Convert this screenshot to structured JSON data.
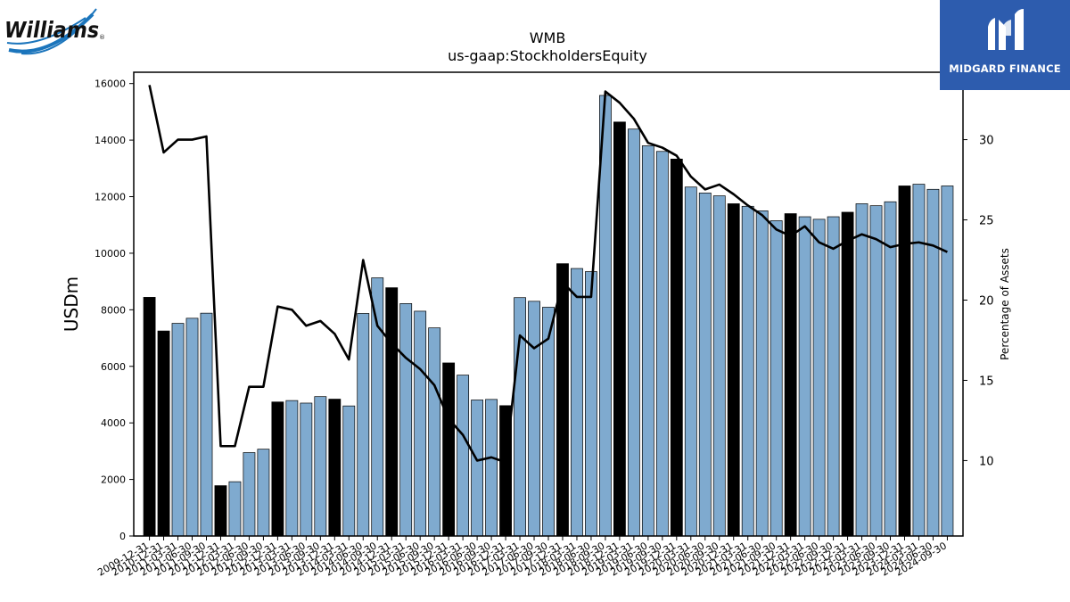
{
  "logos": {
    "left": {
      "text": "Williams",
      "mark": "®"
    },
    "right": {
      "text": "MIDGARD FINANCE"
    }
  },
  "chart_data": {
    "type": "bar",
    "title": "WMB",
    "subtitle": "us-gaap:StockholdersEquity",
    "ylabel": "USDm",
    "y2label": "Percentage of Assets",
    "ylim": [
      0,
      16400
    ],
    "y2lim": [
      5.3,
      34.2
    ],
    "yticks": [
      0,
      2000,
      4000,
      6000,
      8000,
      10000,
      12000,
      14000,
      16000
    ],
    "y2ticks": [
      10,
      15,
      20,
      25,
      30
    ],
    "categories": [
      "2009-12-31",
      "2010-12-31",
      "2011-03-31",
      "2011-06-30",
      "2011-09-30",
      "2011-12-31",
      "2012-03-31",
      "2012-06-30",
      "2012-09-30",
      "2012-12-31",
      "2013-03-31",
      "2013-06-30",
      "2013-09-30",
      "2013-12-31",
      "2014-03-31",
      "2014-06-30",
      "2014-09-30",
      "2014-12-31",
      "2015-03-31",
      "2015-06-30",
      "2015-09-30",
      "2015-12-31",
      "2016-03-31",
      "2016-06-30",
      "2016-09-30",
      "2016-12-31",
      "2017-03-31",
      "2017-06-30",
      "2017-09-30",
      "2017-12-31",
      "2018-03-31",
      "2018-06-30",
      "2018-09-30",
      "2018-12-31",
      "2019-03-31",
      "2019-06-30",
      "2019-09-30",
      "2019-12-31",
      "2020-03-31",
      "2020-06-30",
      "2020-09-30",
      "2020-12-31",
      "2021-03-31",
      "2021-06-30",
      "2021-09-30",
      "2021-12-31",
      "2022-03-31",
      "2022-06-30",
      "2022-09-30",
      "2022-12-31",
      "2023-03-31",
      "2023-06-30",
      "2023-09-30",
      "2023-12-31",
      "2024-03-31",
      "2024-06-30",
      "2024-09-30"
    ],
    "visible_tick_labels": [
      "2009-12-31",
      "2010-12-31",
      "2011-03-31",
      "2011-06-30",
      "2011-09-30",
      "2011-12-31",
      "2012-03-31",
      "2012-06-30",
      "2012-09-30",
      "2012-12-31",
      "2013-03-31",
      "2013-06-30",
      "2013-09-30",
      "2013-12-31",
      "2014-03-31",
      "2014-06-30",
      "2014-09-30",
      "2014-12-31",
      "2015-03-31",
      "2015-06-30",
      "2015-09-30",
      "2015-12-31",
      "2016-03-31",
      "2016-06-30",
      "2016-09-30",
      "2016-12-31",
      "2017-03-31",
      "2017-06-30",
      "2017-09-30",
      "2017-12-31",
      "2018-03-31",
      "2018-06-30",
      "2018-09-30",
      "2018-12-31",
      "2019-03-31",
      "2019-06-30",
      "2019-09-30",
      "2019-12-31",
      "2020-03-31",
      "2020-06-30",
      "2020-09-30",
      "2020-12-31",
      "2021-03-31",
      "2021-06-30",
      "2021-09-30",
      "2021-12-31",
      "2022-03-31",
      "2022-06-30",
      "2022-09-30",
      "2022-12-31",
      "2023-03-31",
      "2023-06-30",
      "2023-09-30",
      "2023-12-31",
      "2024-03-31",
      "2024-06-30",
      "2024-09-30"
    ],
    "bar_values": [
      8440,
      7250,
      7520,
      7700,
      7880,
      1780,
      1920,
      2950,
      3070,
      4740,
      4790,
      4700,
      4930,
      4840,
      4600,
      7870,
      9130,
      8780,
      8220,
      7950,
      7360,
      6120,
      5690,
      4810,
      4830,
      4610,
      8430,
      8300,
      8090,
      9630,
      9460,
      9350,
      15580,
      14640,
      14390,
      13800,
      13600,
      13330,
      12340,
      12130,
      12030,
      11750,
      11660,
      11500,
      11150,
      11400,
      11290,
      11200,
      11290,
      11450,
      11750,
      11680,
      11820,
      12380,
      12440,
      12260,
      12380
    ],
    "bar_highlight": [
      true,
      true,
      false,
      false,
      false,
      true,
      false,
      false,
      false,
      true,
      false,
      false,
      false,
      true,
      false,
      false,
      false,
      true,
      false,
      false,
      false,
      true,
      false,
      false,
      false,
      true,
      false,
      false,
      false,
      true,
      false,
      false,
      false,
      true,
      false,
      false,
      false,
      true,
      false,
      false,
      false,
      true,
      false,
      false,
      false,
      true,
      false,
      false,
      false,
      true,
      false,
      false,
      false,
      true,
      false,
      false,
      false
    ],
    "series": [
      {
        "type": "line",
        "axis": "y2",
        "values": [
          33.4,
          29.2,
          30.0,
          30.0,
          30.2,
          10.9,
          10.9,
          14.6,
          14.6,
          19.6,
          19.4,
          18.4,
          18.7,
          17.9,
          16.3,
          22.5,
          18.4,
          17.3,
          16.4,
          15.7,
          14.7,
          12.6,
          11.6,
          10.0,
          10.2,
          9.9,
          17.8,
          17.0,
          17.6,
          21.1,
          20.2,
          20.2,
          33.0,
          32.3,
          31.3,
          29.8,
          29.5,
          29.0,
          27.7,
          26.9,
          27.2,
          26.6,
          25.9,
          25.3,
          24.4,
          24.0,
          24.6,
          23.6,
          23.2,
          23.7,
          24.1,
          23.8,
          23.3,
          23.5,
          23.6,
          23.4,
          23.0
        ]
      }
    ],
    "colors": {
      "bar": "#7faacf",
      "bar_highlight": "#000000",
      "bar_edge": "#000000",
      "line": "#000000",
      "midgard_bg": "#2d5cae",
      "williams_blue": "#1b75bc"
    },
    "grid": false
  }
}
